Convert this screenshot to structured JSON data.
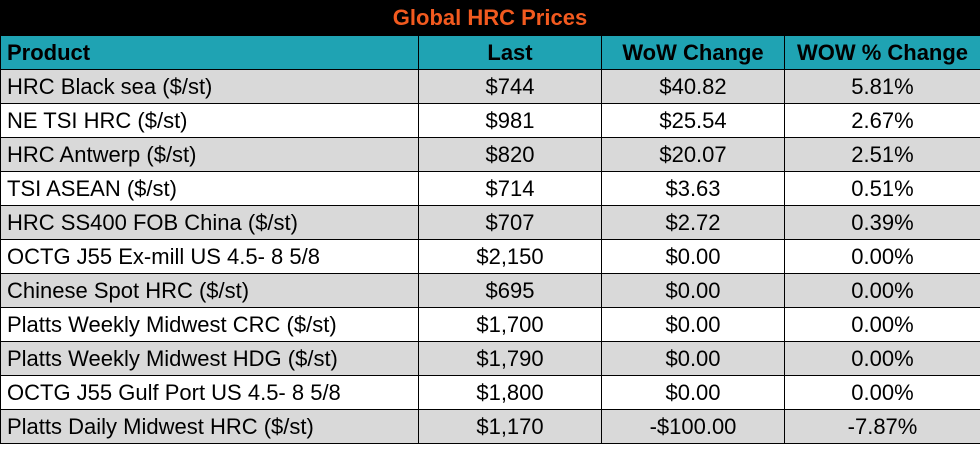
{
  "title": "Global HRC Prices",
  "columns": [
    "Product",
    "Last",
    "WoW Change",
    "WOW % Change"
  ],
  "rows": [
    [
      "HRC Black sea ($/st)",
      "$744",
      "$40.82",
      "5.81%"
    ],
    [
      "NE TSI HRC ($/st)",
      "$981",
      "$25.54",
      "2.67%"
    ],
    [
      "HRC Antwerp ($/st)",
      "$820",
      "$20.07",
      "2.51%"
    ],
    [
      "TSI ASEAN ($/st)",
      "$714",
      "$3.63",
      "0.51%"
    ],
    [
      "HRC SS400 FOB China ($/st)",
      "$707",
      "$2.72",
      "0.39%"
    ],
    [
      "OCTG J55 Ex-mill US 4.5- 8 5/8",
      "$2,150",
      "$0.00",
      "0.00%"
    ],
    [
      "Chinese Spot HRC ($/st)",
      "$695",
      "$0.00",
      "0.00%"
    ],
    [
      "Platts Weekly Midwest CRC ($/st)",
      "$1,700",
      "$0.00",
      "0.00%"
    ],
    [
      "Platts Weekly Midwest HDG ($/st)",
      "$1,790",
      "$0.00",
      "0.00%"
    ],
    [
      "OCTG J55 Gulf Port US 4.5- 8 5/8",
      "$1,800",
      "$0.00",
      "0.00%"
    ],
    [
      "Platts Daily Midwest HRC ($/st)",
      "$1,170",
      "-$100.00",
      "-7.87%"
    ]
  ],
  "colors": {
    "title_bg": "#000000",
    "title_text": "#f25a1f",
    "header_bg": "#1fa3b3",
    "row_shade": "#d9d9d9",
    "row_plain": "#ffffff"
  }
}
